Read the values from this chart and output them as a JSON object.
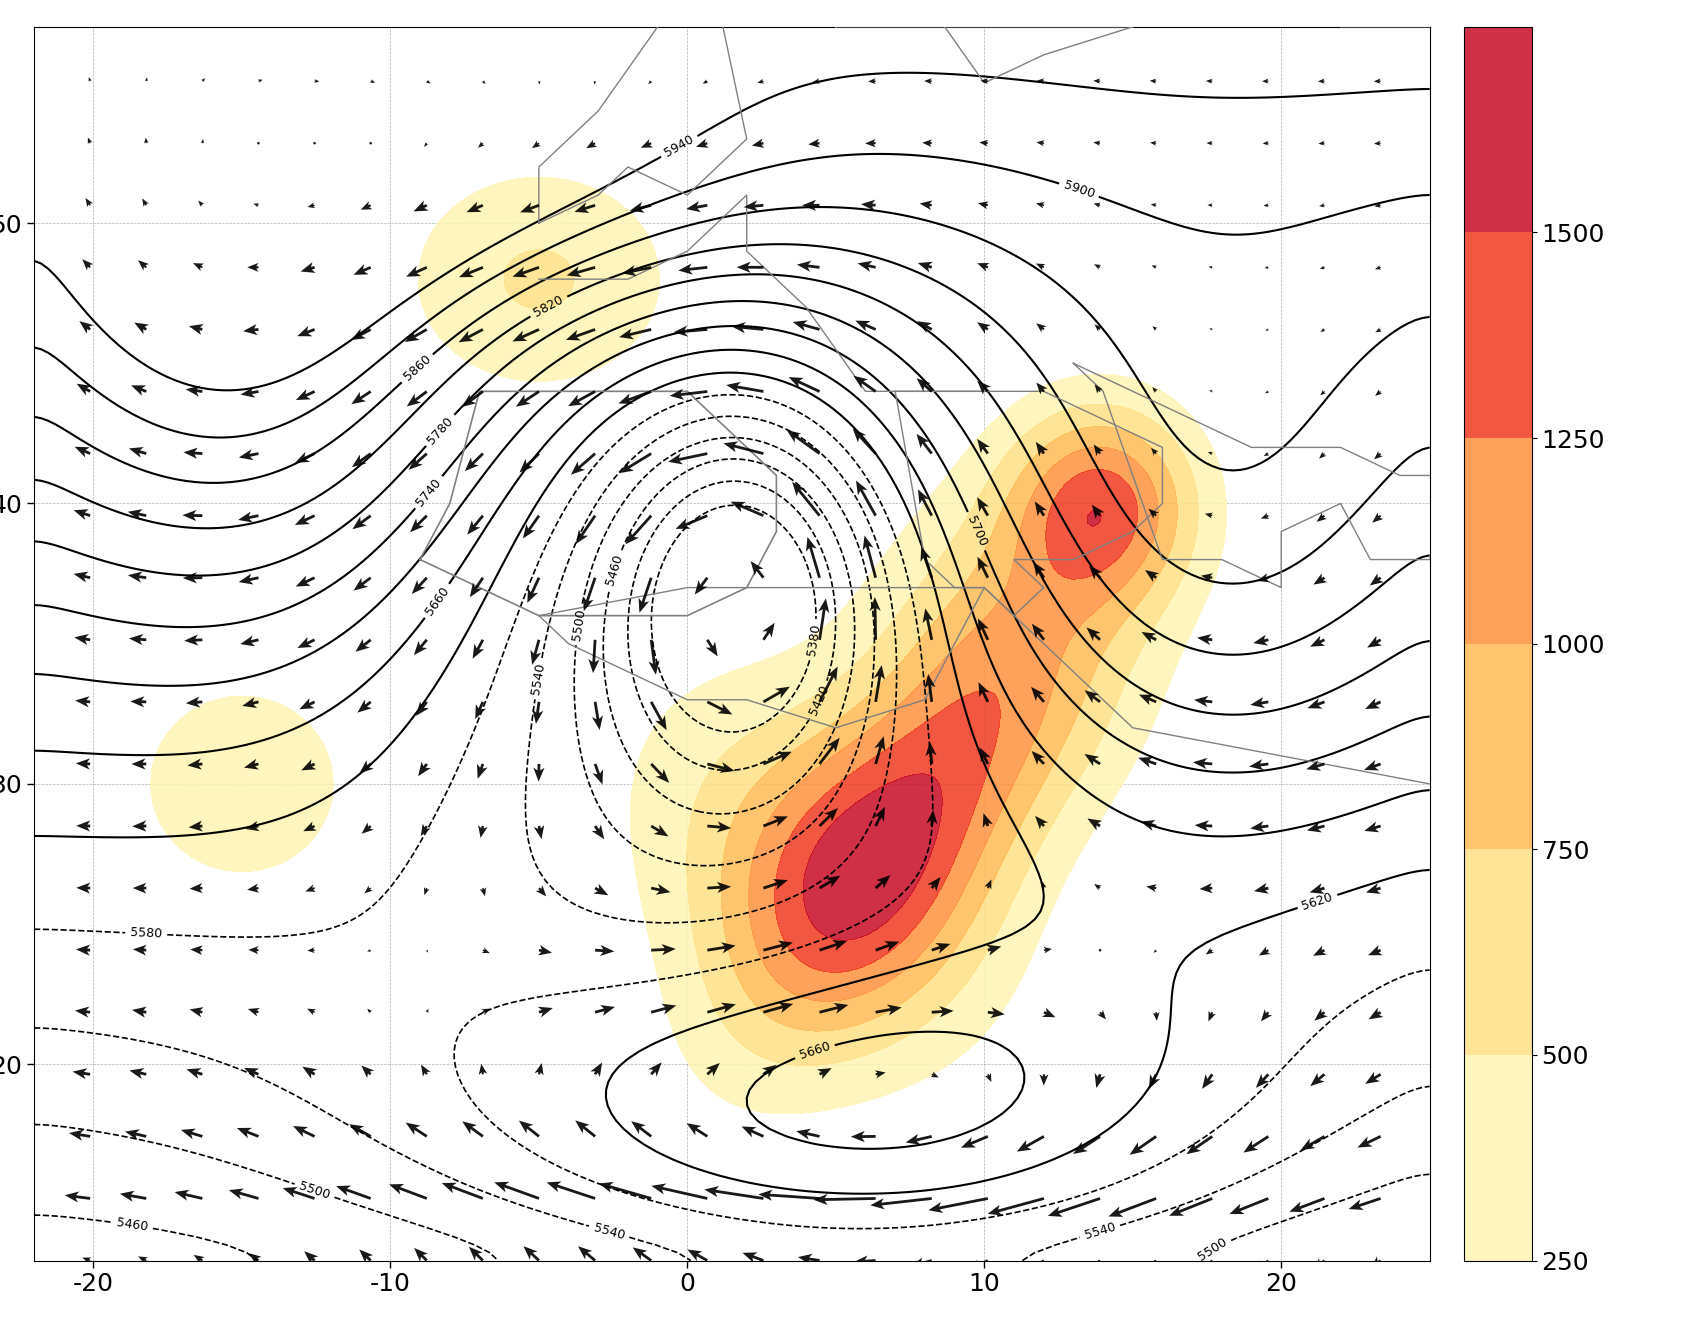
{
  "lon_min": -22,
  "lon_max": 25,
  "lat_min": 13,
  "lat_max": 57,
  "xticks": [
    -20,
    -10,
    0,
    10,
    20
  ],
  "yticks": [
    20,
    30,
    40,
    50
  ],
  "xtick_labels": [
    "-20",
    "-10",
    "0",
    "10",
    "20"
  ],
  "ytick_labels": [
    "20",
    "30",
    "40",
    "50"
  ],
  "colorbar_ticks": [
    250,
    500,
    750,
    1000,
    1250,
    1500
  ],
  "colorbar_colors": [
    "#ffffcc",
    "#ffeda0",
    "#fed976",
    "#feb24c",
    "#fd8d3c",
    "#f03b20",
    "#bd0026"
  ],
  "colorbar_bounds": [
    250,
    500,
    750,
    1000,
    1250,
    1500
  ],
  "contour_levels_dashed": [
    5380,
    5420,
    5460,
    5500,
    5540,
    5580
  ],
  "contour_levels_solid": [
    5620,
    5660,
    5700,
    5740,
    5780,
    5820,
    5860,
    5900,
    5940
  ],
  "figsize": [
    17.02,
    13.41
  ],
  "dpi": 100,
  "map_background": "#ffffff",
  "coastline_color": "#808080",
  "contour_color": "#000000",
  "arrow_color": "#000000",
  "title": ""
}
